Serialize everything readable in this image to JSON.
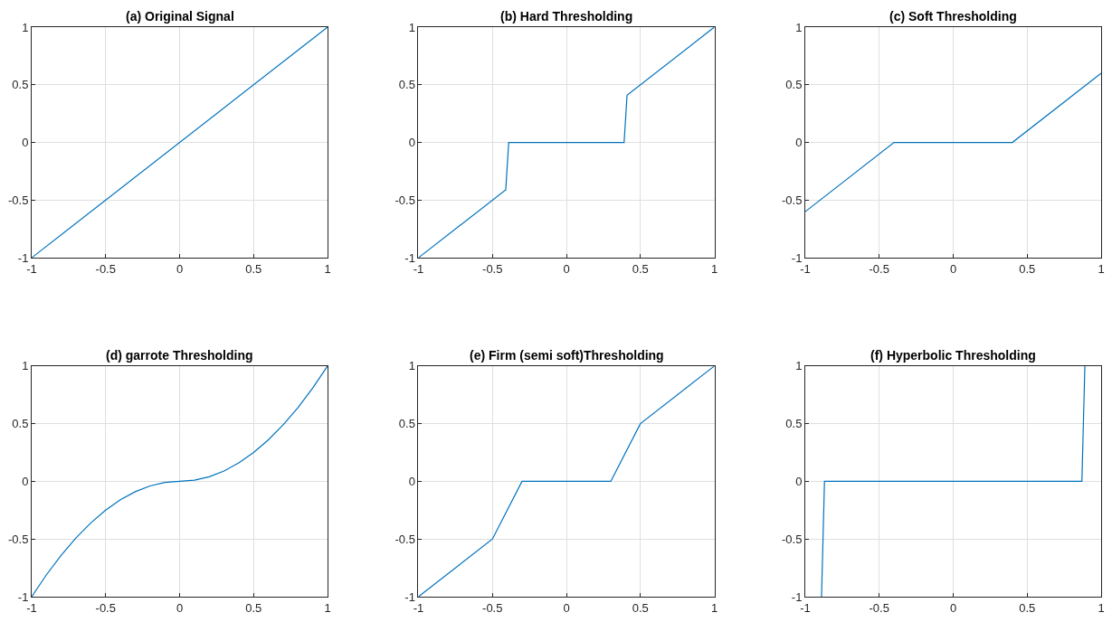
{
  "chart_data": [
    {
      "type": "line",
      "title": "(a) Original Signal",
      "x": [
        -1,
        1
      ],
      "values": [
        -1,
        1
      ],
      "color": "#0072bd",
      "xlim": [
        -1,
        1
      ],
      "ylim": [
        -1,
        1
      ],
      "xticks": [
        -1,
        -0.5,
        0,
        0.5,
        1
      ],
      "yticks": [
        -1,
        -0.5,
        0,
        0.5,
        1
      ],
      "grid": true
    },
    {
      "type": "line",
      "title": "(b) Hard Thresholding",
      "x": [
        -1,
        -0.41,
        -0.39,
        0.39,
        0.41,
        1
      ],
      "values": [
        -1,
        -0.41,
        0,
        0,
        0.41,
        1
      ],
      "color": "#0072bd",
      "xlim": [
        -1,
        1
      ],
      "ylim": [
        -1,
        1
      ],
      "xticks": [
        -1,
        -0.5,
        0,
        0.5,
        1
      ],
      "yticks": [
        -1,
        -0.5,
        0,
        0.5,
        1
      ],
      "grid": true
    },
    {
      "type": "line",
      "title": "(c) Soft Thresholding",
      "x": [
        -1,
        -0.4,
        0.4,
        1
      ],
      "values": [
        -0.6,
        0,
        0,
        0.6
      ],
      "color": "#0072bd",
      "xlim": [
        -1,
        1
      ],
      "ylim": [
        -1,
        1
      ],
      "xticks": [
        -1,
        -0.5,
        0,
        0.5,
        1
      ],
      "yticks": [
        -1,
        -0.5,
        0,
        0.5,
        1
      ],
      "grid": true
    },
    {
      "type": "line",
      "title": "(d) garrote Thresholding",
      "x": [
        -1,
        -0.9,
        -0.8,
        -0.7,
        -0.6,
        -0.5,
        -0.4,
        -0.3,
        -0.2,
        -0.1,
        0,
        0.1,
        0.2,
        0.3,
        0.4,
        0.5,
        0.6,
        0.7,
        0.8,
        0.9,
        1
      ],
      "values": [
        -1,
        -0.81,
        -0.64,
        -0.49,
        -0.36,
        -0.25,
        -0.16,
        -0.09,
        -0.04,
        -0.01,
        0,
        0.01,
        0.04,
        0.09,
        0.16,
        0.25,
        0.36,
        0.49,
        0.64,
        0.81,
        1
      ],
      "color": "#0072bd",
      "xlim": [
        -1,
        1
      ],
      "ylim": [
        -1,
        1
      ],
      "xticks": [
        -1,
        -0.5,
        0,
        0.5,
        1
      ],
      "yticks": [
        -1,
        -0.5,
        0,
        0.5,
        1
      ],
      "grid": true
    },
    {
      "type": "line",
      "title": "(e) Firm (semi soft)Thresholding",
      "x": [
        -1,
        -0.5,
        -0.3,
        0.3,
        0.5,
        1
      ],
      "values": [
        -1,
        -0.5,
        0,
        0,
        0.5,
        1
      ],
      "color": "#0072bd",
      "xlim": [
        -1,
        1
      ],
      "ylim": [
        -1,
        1
      ],
      "xticks": [
        -1,
        -0.5,
        0,
        0.5,
        1
      ],
      "yticks": [
        -1,
        -0.5,
        0,
        0.5,
        1
      ],
      "grid": true
    },
    {
      "type": "line",
      "title": "(f) Hyperbolic Thresholding",
      "x": [
        -0.89,
        -0.87,
        0.87,
        0.89
      ],
      "values": [
        -1,
        0,
        0,
        1
      ],
      "color": "#0072bd",
      "xlim": [
        -1,
        1
      ],
      "ylim": [
        -1,
        1
      ],
      "xticks": [
        -1,
        -0.5,
        0,
        0.5,
        1
      ],
      "yticks": [
        -1,
        -0.5,
        0,
        0.5,
        1
      ],
      "grid": true
    }
  ]
}
